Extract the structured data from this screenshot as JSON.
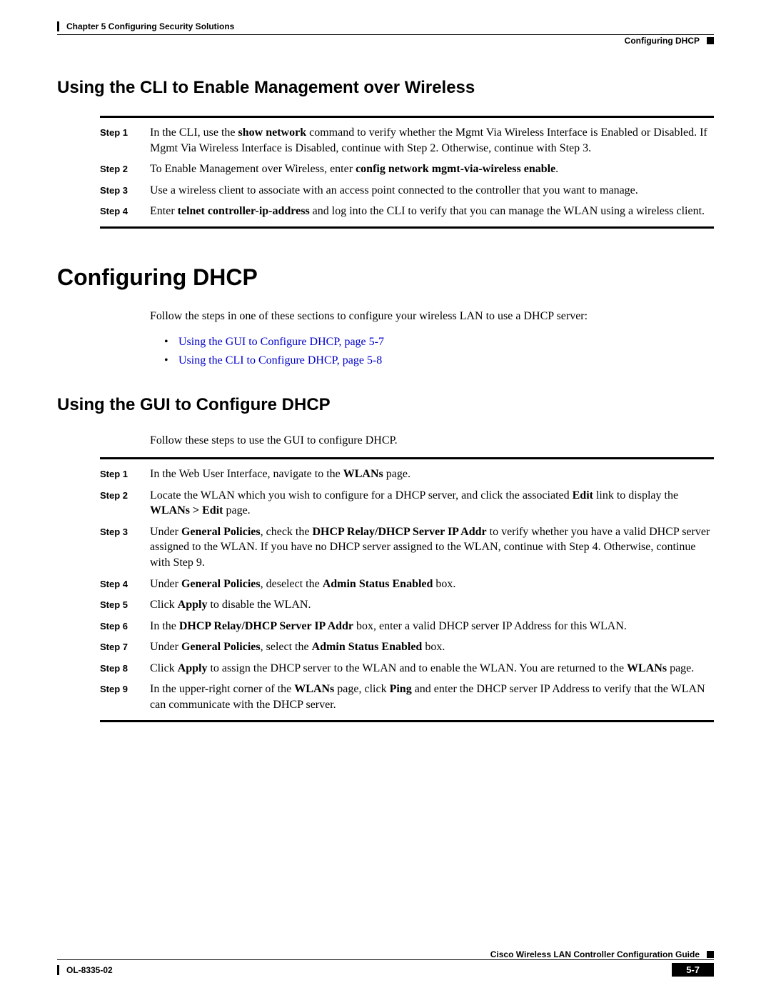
{
  "header": {
    "chapter": "Chapter 5      Configuring Security Solutions",
    "section": "Configuring DHCP"
  },
  "section1": {
    "title": "Using the CLI to Enable Management over Wireless",
    "steps": [
      {
        "label": "Step 1",
        "pre": "In the CLI, use the ",
        "b1": "show network",
        "mid": " command to verify whether the Mgmt Via Wireless Interface is Enabled or Disabled. If Mgmt Via Wireless Interface is Disabled, continue with Step 2. Otherwise, continue with Step 3."
      },
      {
        "label": "Step 2",
        "pre": "To Enable Management over Wireless, enter ",
        "b1": "config network mgmt-via-wireless enable",
        "mid": "."
      },
      {
        "label": "Step 3",
        "pre": "Use a wireless client to associate with an access point connected to the controller that you want to manage."
      },
      {
        "label": "Step 4",
        "pre": "Enter ",
        "b1": "telnet controller-ip-address",
        "mid": " and log into the CLI to verify that you can manage the WLAN using a wireless client."
      }
    ]
  },
  "mainTitle": "Configuring DHCP",
  "intro": "Follow the steps in one of these sections to configure your wireless LAN to use a DHCP server:",
  "links": [
    "Using the GUI to Configure DHCP, page 5-7",
    "Using the CLI to Configure DHCP, page 5-8"
  ],
  "section2": {
    "title": "Using the GUI to Configure DHCP",
    "intro": "Follow these steps to use the GUI to configure DHCP.",
    "steps": [
      {
        "label": "Step 1",
        "parts": [
          {
            "t": "In the Web User Interface, navigate to the "
          },
          {
            "t": "WLANs",
            "b": true
          },
          {
            "t": " page."
          }
        ]
      },
      {
        "label": "Step 2",
        "parts": [
          {
            "t": "Locate the WLAN which you wish to configure for a DHCP server, and click the associated "
          },
          {
            "t": "Edit",
            "b": true
          },
          {
            "t": " link to display the "
          },
          {
            "t": "WLANs > Edit",
            "b": true
          },
          {
            "t": " page."
          }
        ]
      },
      {
        "label": "Step 3",
        "parts": [
          {
            "t": "Under "
          },
          {
            "t": "General Policies",
            "b": true
          },
          {
            "t": ", check the "
          },
          {
            "t": "DHCP Relay/DHCP Server IP Addr",
            "b": true
          },
          {
            "t": " to verify whether you have a valid DHCP server assigned to the WLAN. If you have no DHCP server assigned to the WLAN, continue with Step 4. Otherwise, continue with Step 9."
          }
        ]
      },
      {
        "label": "Step 4",
        "parts": [
          {
            "t": "Under "
          },
          {
            "t": "General Policies",
            "b": true
          },
          {
            "t": ", deselect the "
          },
          {
            "t": "Admin Status Enabled",
            "b": true
          },
          {
            "t": " box."
          }
        ]
      },
      {
        "label": "Step 5",
        "parts": [
          {
            "t": "Click "
          },
          {
            "t": "Apply",
            "b": true
          },
          {
            "t": " to disable the WLAN."
          }
        ]
      },
      {
        "label": "Step 6",
        "parts": [
          {
            "t": "In the "
          },
          {
            "t": "DHCP Relay/DHCP Server IP Addr",
            "b": true
          },
          {
            "t": " box, enter a valid DHCP server IP Address for this WLAN."
          }
        ]
      },
      {
        "label": "Step 7",
        "parts": [
          {
            "t": "Under "
          },
          {
            "t": "General Policies",
            "b": true
          },
          {
            "t": ", select the "
          },
          {
            "t": "Admin Status Enabled",
            "b": true
          },
          {
            "t": " box."
          }
        ]
      },
      {
        "label": "Step 8",
        "parts": [
          {
            "t": "Click "
          },
          {
            "t": "Apply",
            "b": true
          },
          {
            "t": " to assign the DHCP server to the WLAN and to enable the WLAN. You are returned to the "
          },
          {
            "t": "WLANs",
            "b": true
          },
          {
            "t": " page."
          }
        ]
      },
      {
        "label": "Step 9",
        "parts": [
          {
            "t": "In the upper-right corner of the "
          },
          {
            "t": "WLANs",
            "b": true
          },
          {
            "t": " page, click "
          },
          {
            "t": "Ping",
            "b": true
          },
          {
            "t": " and enter the DHCP server IP Address to verify that the WLAN can communicate with the DHCP server."
          }
        ]
      }
    ]
  },
  "footer": {
    "guide": "Cisco Wireless LAN Controller Configuration Guide",
    "doc": "OL-8335-02",
    "page": "5-7"
  }
}
